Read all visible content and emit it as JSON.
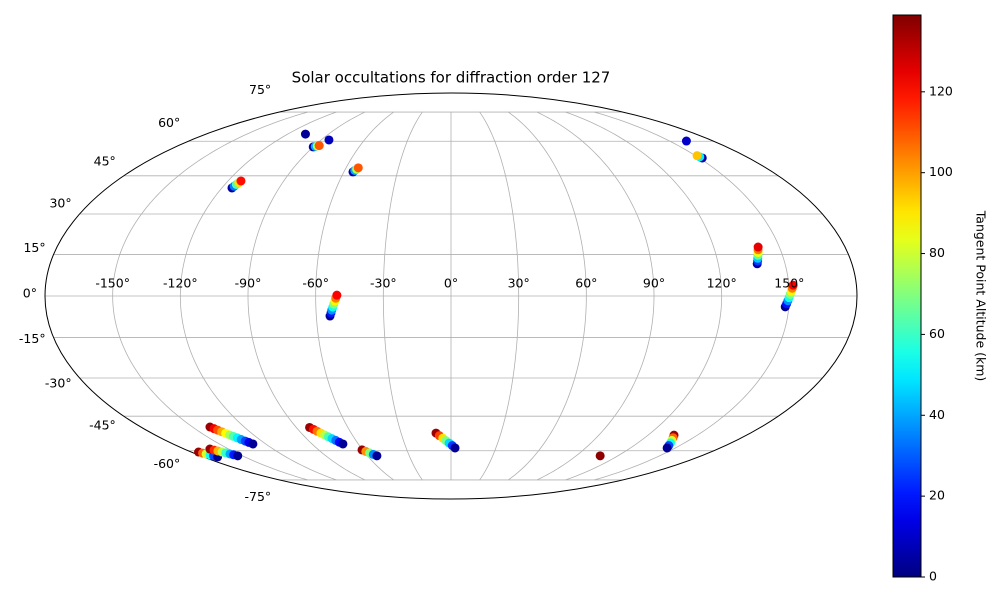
{
  "chart_data": {
    "type": "scatter",
    "projection": "mollweide",
    "colormap": "jet",
    "title": "Solar occultations for diffraction order 127",
    "colorbar_label": "Tangent Point Altitude (km)",
    "clim": [
      0,
      139
    ],
    "cticks": [
      0,
      20,
      40,
      60,
      80,
      100,
      120
    ],
    "grid": true,
    "xticks": [
      {
        "value": -150,
        "label": "-150°"
      },
      {
        "value": -120,
        "label": "-120°"
      },
      {
        "value": -90,
        "label": "-90°"
      },
      {
        "value": -60,
        "label": "-60°"
      },
      {
        "value": -30,
        "label": "-30°"
      },
      {
        "value": 0,
        "label": "0°"
      },
      {
        "value": 30,
        "label": "30°"
      },
      {
        "value": 60,
        "label": "60°"
      },
      {
        "value": 90,
        "label": "90°"
      },
      {
        "value": 120,
        "label": "120°"
      },
      {
        "value": 150,
        "label": "150°"
      }
    ],
    "yticks": [
      {
        "value": -75,
        "label": "-75°"
      },
      {
        "value": -60,
        "label": "-60°"
      },
      {
        "value": -45,
        "label": "-45°"
      },
      {
        "value": -30,
        "label": "-30°"
      },
      {
        "value": -15,
        "label": "-15°"
      },
      {
        "value": 0,
        "label": "0°"
      },
      {
        "value": 15,
        "label": "15°"
      },
      {
        "value": 30,
        "label": "30°"
      },
      {
        "value": 45,
        "label": "45°"
      },
      {
        "value": 60,
        "label": "60°"
      },
      {
        "value": 75,
        "label": "75°"
      }
    ],
    "series": [
      {
        "x": [
          -107
        ],
        "y": [
          63.4
        ],
        "c": [
          3
        ]
      },
      {
        "x": [
          -90,
          -89,
          -88,
          -87
        ],
        "y": [
          57.4,
          57.6,
          57.8,
          58
        ],
        "c": [
          5,
          40,
          75,
          110
        ]
      },
      {
        "x": [
          -84.6
        ],
        "y": [
          60.6
        ],
        "c": [
          8
        ]
      },
      {
        "x": [
          -54.9,
          -54.3,
          -53.6,
          -53
        ],
        "y": [
          46.6,
          47.2,
          47.7,
          48.3
        ],
        "c": [
          5,
          40,
          75,
          110
        ]
      },
      {
        "x": [
          -114.7,
          -114.3,
          -113.9,
          -113.4,
          -113
        ],
        "y": [
          40.1,
          40.8,
          41.5,
          42.2,
          42.9
        ],
        "c": [
          5,
          34,
          62,
          91,
          120
        ]
      },
      {
        "x": [
          161.6
        ],
        "y": [
          60.1
        ],
        "c": [
          10
        ]
      },
      {
        "x": [
          151.9,
          151.5,
          151
        ],
        "y": [
          52.5,
          53,
          53.5
        ],
        "c": [
          5,
          50,
          95
        ]
      },
      {
        "x": [
          137.5,
          138,
          138.4,
          138.9,
          139.4,
          139.8,
          140.3
        ],
        "y": [
          11.6,
          12.6,
          13.6,
          14.7,
          15.7,
          16.7,
          17.7
        ],
        "c": [
          5,
          25,
          45,
          65,
          85,
          105,
          125
        ]
      },
      {
        "x": [
          148.4,
          148.9,
          149.4,
          149.9,
          150.4,
          150.9,
          151.4,
          151.9
        ],
        "y": [
          -3.9,
          -2.8,
          -1.7,
          -0.6,
          0.6,
          1.7,
          2.8,
          3.9
        ],
        "c": [
          3,
          20,
          37,
          54,
          71,
          88,
          105,
          122
        ]
      },
      {
        "x": [
          -53.9,
          -53.4,
          -53,
          -52.5,
          -52,
          -51.5,
          -51.1,
          -50.6
        ],
        "y": [
          -7.2,
          -6.1,
          -5.1,
          -4,
          -2.9,
          -1.8,
          -0.8,
          0.3
        ],
        "c": [
          3,
          20,
          37,
          54,
          71,
          88,
          105,
          122
        ]
      },
      {
        "x": [
          -139.9,
          -138.8,
          -137.8,
          -136.7,
          -135.7,
          -134.6,
          -133.6,
          -132.5,
          -131.5,
          -130.4,
          -129.4,
          -128.3
        ],
        "y": [
          -49.5,
          -50.2,
          -50.8,
          -51.5,
          -52.2,
          -52.9,
          -53.5,
          -54.2,
          -54.9,
          -55.6,
          -56.2,
          -56.9
        ],
        "c": [
          135,
          123,
          111,
          99,
          87,
          75,
          63,
          51,
          39,
          27,
          15,
          3
        ]
      },
      {
        "x": [
          -175,
          -173.9,
          -172.9,
          -171.8,
          -170.8,
          -169.7
        ],
        "y": [
          -60.6,
          -61.1,
          -61.5,
          -62,
          -62.4,
          -62.9
        ],
        "c": [
          135,
          108,
          81,
          54,
          27,
          3
        ]
      },
      {
        "x": [
          -162.7,
          -161.4,
          -160,
          -158.7,
          -157.4,
          -156,
          -154.7,
          -153.4
        ],
        "y": [
          -59.2,
          -59.7,
          -60.1,
          -60.6,
          -61,
          -61.5,
          -61.9,
          -62.4
        ],
        "c": [
          135,
          116,
          97,
          78,
          59,
          40,
          21,
          3
        ]
      },
      {
        "x": [
          -82.3,
          -80.9,
          -79.6,
          -78.2,
          -76.8,
          -75.5,
          -74.1,
          -72.7,
          -71.4,
          -70
        ],
        "y": [
          -49.7,
          -50.5,
          -51.3,
          -52.1,
          -52.9,
          -53.7,
          -54.5,
          -55.3,
          -56.1,
          -56.9
        ],
        "c": [
          135,
          120,
          106,
          91,
          77,
          62,
          47,
          33,
          18,
          3
        ]
      },
      {
        "x": [
          -60.5,
          -58.7,
          -56.9,
          -55.1,
          -53.3
        ],
        "y": [
          -59.6,
          -60.3,
          -61,
          -61.7,
          -62.4
        ],
        "c": [
          135,
          102,
          69,
          36,
          3
        ]
      },
      {
        "x": [
          -9,
          -7.1,
          -5.1,
          -3.2,
          -1.2,
          0.8,
          2.7
        ],
        "y": [
          -52.1,
          -53.2,
          -54.3,
          -55.4,
          -56.5,
          -57.6,
          -58.7
        ],
        "c": [
          135,
          113,
          91,
          69,
          47,
          25,
          3
        ]
      },
      {
        "x": [
          107.3
        ],
        "y": [
          -62.4
        ],
        "c": [
          137
        ]
      },
      {
        "x": [
          135.8,
          137.5,
          139.3,
          141,
          142.8,
          144.5
        ],
        "y": [
          -53,
          -54.1,
          -55.3,
          -56.4,
          -57.6,
          -58.7
        ],
        "c": [
          135,
          108,
          81,
          54,
          27,
          3
        ]
      }
    ]
  }
}
